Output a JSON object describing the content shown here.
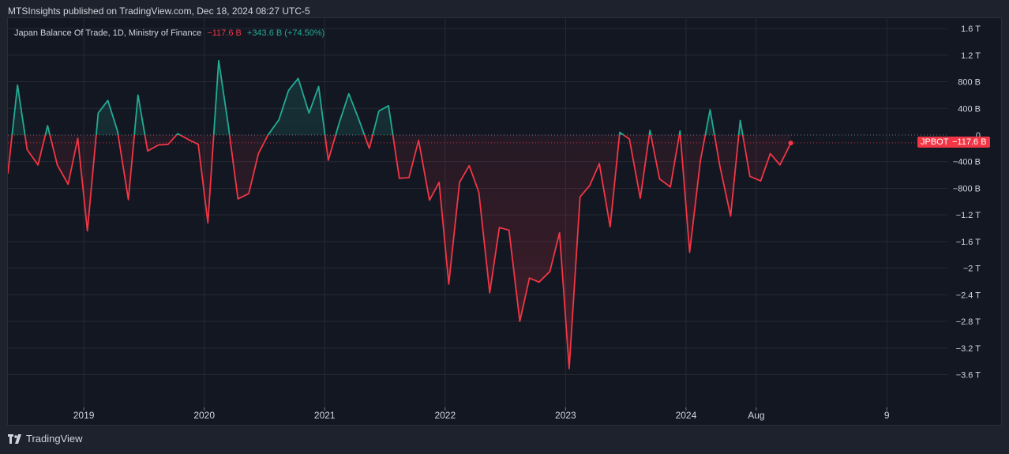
{
  "header": {
    "text": "MTSInsights published on TradingView.com, Dec 18, 2024 08:27 UTC-5"
  },
  "legend": {
    "title": "Japan Balance Of Trade, 1D, Ministry of Finance",
    "value": "−117.6 B",
    "change": "+343.6 B (+74.50%)"
  },
  "footer": {
    "brand": "TradingView"
  },
  "colors": {
    "positive": "#22ab94",
    "negative": "#f23645",
    "background": "#131722",
    "grid": "#262a35"
  },
  "chart_data": {
    "type": "area",
    "title": "Japan Balance Of Trade, 1D, Ministry of Finance",
    "xlabel": "",
    "ylabel": "",
    "ylim": [
      -4.0,
      1.6
    ],
    "y_ticks": [
      {
        "v": 1.6,
        "label": "1.6 T"
      },
      {
        "v": 1.2,
        "label": "1.2 T"
      },
      {
        "v": 0.8,
        "label": "800 B"
      },
      {
        "v": 0.4,
        "label": "400 B"
      },
      {
        "v": 0,
        "label": "0"
      },
      {
        "v": -0.4,
        "label": "−400 B"
      },
      {
        "v": -0.8,
        "label": "−800 B"
      },
      {
        "v": -1.2,
        "label": "−1.2 T"
      },
      {
        "v": -1.6,
        "label": "−1.6 T"
      },
      {
        "v": -2.0,
        "label": "−2 T"
      },
      {
        "v": -2.4,
        "label": "−2.4 T"
      },
      {
        "v": -2.8,
        "label": "−2.8 T"
      },
      {
        "v": -3.2,
        "label": "−3.2 T"
      },
      {
        "v": -3.6,
        "label": "−3.6 T"
      }
    ],
    "x_ticks": [
      {
        "t": 2019.0,
        "label": "2019"
      },
      {
        "t": 2020.0,
        "label": "2020"
      },
      {
        "t": 2021.0,
        "label": "2021"
      },
      {
        "t": 2022.0,
        "label": "2022"
      },
      {
        "t": 2023.0,
        "label": "2023"
      },
      {
        "t": 2024.0,
        "label": "2024"
      },
      {
        "t": 2024.583,
        "label": "Aug"
      },
      {
        "t": 2025.667,
        "label": "9"
      }
    ],
    "xlim": [
      2018.37,
      2026.17
    ],
    "last_value": -0.1176,
    "last_label": "−117.6 B",
    "symbol": "JPBOT",
    "points": [
      [
        2018.37,
        -0.58
      ],
      [
        2018.45,
        0.75
      ],
      [
        2018.53,
        -0.22
      ],
      [
        2018.62,
        -0.45
      ],
      [
        2018.7,
        0.14
      ],
      [
        2018.78,
        -0.45
      ],
      [
        2018.87,
        -0.74
      ],
      [
        2018.95,
        -0.05
      ],
      [
        2019.03,
        -1.44
      ],
      [
        2019.12,
        0.33
      ],
      [
        2019.2,
        0.52
      ],
      [
        2019.28,
        0.06
      ],
      [
        2019.37,
        -0.97
      ],
      [
        2019.45,
        0.6
      ],
      [
        2019.53,
        -0.24
      ],
      [
        2019.62,
        -0.15
      ],
      [
        2019.7,
        -0.14
      ],
      [
        2019.78,
        0.02
      ],
      [
        2019.87,
        -0.07
      ],
      [
        2019.95,
        -0.14
      ],
      [
        2020.03,
        -1.32
      ],
      [
        2020.12,
        1.12
      ],
      [
        2020.2,
        0.14
      ],
      [
        2020.28,
        -0.96
      ],
      [
        2020.37,
        -0.88
      ],
      [
        2020.45,
        -0.28
      ],
      [
        2020.53,
        0.0
      ],
      [
        2020.62,
        0.23
      ],
      [
        2020.7,
        0.67
      ],
      [
        2020.78,
        0.85
      ],
      [
        2020.87,
        0.33
      ],
      [
        2020.95,
        0.73
      ],
      [
        2021.03,
        -0.38
      ],
      [
        2021.12,
        0.18
      ],
      [
        2021.2,
        0.62
      ],
      [
        2021.28,
        0.25
      ],
      [
        2021.37,
        -0.2
      ],
      [
        2021.45,
        0.36
      ],
      [
        2021.53,
        0.44
      ],
      [
        2021.62,
        -0.65
      ],
      [
        2021.7,
        -0.64
      ],
      [
        2021.78,
        -0.08
      ],
      [
        2021.87,
        -0.98
      ],
      [
        2021.95,
        -0.71
      ],
      [
        2022.03,
        -2.24
      ],
      [
        2022.12,
        -0.71
      ],
      [
        2022.2,
        -0.46
      ],
      [
        2022.28,
        -0.86
      ],
      [
        2022.37,
        -2.37
      ],
      [
        2022.45,
        -1.39
      ],
      [
        2022.53,
        -1.43
      ],
      [
        2022.62,
        -2.8
      ],
      [
        2022.7,
        -2.15
      ],
      [
        2022.78,
        -2.21
      ],
      [
        2022.87,
        -2.05
      ],
      [
        2022.95,
        -1.47
      ],
      [
        2023.03,
        -3.51
      ],
      [
        2023.12,
        -0.93
      ],
      [
        2023.2,
        -0.76
      ],
      [
        2023.28,
        -0.43
      ],
      [
        2023.37,
        -1.38
      ],
      [
        2023.45,
        0.04
      ],
      [
        2023.53,
        -0.06
      ],
      [
        2023.62,
        -0.95
      ],
      [
        2023.7,
        0.07
      ],
      [
        2023.78,
        -0.66
      ],
      [
        2023.87,
        -0.78
      ],
      [
        2023.95,
        0.06
      ],
      [
        2024.03,
        -1.76
      ],
      [
        2024.12,
        -0.38
      ],
      [
        2024.2,
        0.38
      ],
      [
        2024.28,
        -0.46
      ],
      [
        2024.37,
        -1.22
      ],
      [
        2024.45,
        0.22
      ],
      [
        2024.53,
        -0.62
      ],
      [
        2024.62,
        -0.69
      ],
      [
        2024.7,
        -0.28
      ],
      [
        2024.78,
        -0.45
      ],
      [
        2024.87,
        -0.12
      ]
    ]
  }
}
